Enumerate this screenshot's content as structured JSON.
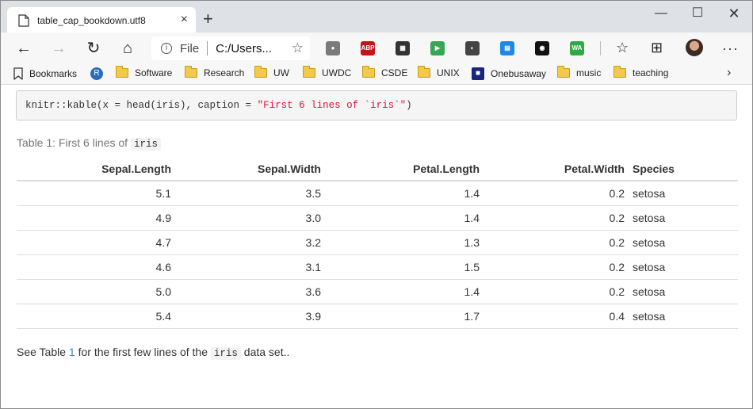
{
  "tab": {
    "title": "table_cap_bookdown.utf8",
    "close": "×",
    "new_tab": "+"
  },
  "window_controls": {
    "minimize": "—",
    "maximize": "☐",
    "close": "✕"
  },
  "address": {
    "scheme": "File",
    "url": "C:/Users..."
  },
  "extensions": [
    {
      "name": "ghostery",
      "color": "#7a7a7a",
      "glyph": "●"
    },
    {
      "name": "adblock-plus",
      "color": "#c7141a",
      "glyph": "ABP"
    },
    {
      "name": "qr-code",
      "color": "#333333",
      "glyph": "▦"
    },
    {
      "name": "play",
      "color": "#35a853",
      "glyph": "▶"
    },
    {
      "name": "incognito",
      "color": "#444444",
      "glyph": "◐"
    },
    {
      "name": "window-share",
      "color": "#1e88e5",
      "glyph": "▤"
    },
    {
      "name": "github",
      "color": "#111111",
      "glyph": "◉"
    },
    {
      "name": "whatsapp",
      "color": "#2fa944",
      "glyph": "WA"
    }
  ],
  "bookmarks": {
    "label": "Bookmarks",
    "items": [
      {
        "label": "Software",
        "type": "folder"
      },
      {
        "label": "Research",
        "type": "folder"
      },
      {
        "label": "UW",
        "type": "folder"
      },
      {
        "label": "UWDC",
        "type": "folder"
      },
      {
        "label": "CSDE",
        "type": "folder"
      },
      {
        "label": "UNIX",
        "type": "folder"
      },
      {
        "label": "Onebusaway",
        "type": "bus"
      },
      {
        "label": "music",
        "type": "folder"
      },
      {
        "label": "teaching",
        "type": "folder"
      }
    ],
    "more": "›"
  },
  "code": {
    "prefix": "knitr::kable(x = head(iris), caption = ",
    "string": "\"First 6 lines of `iris`\"",
    "suffix": ")"
  },
  "caption": {
    "prefix": "Table 1: First 6 lines of ",
    "code": "iris"
  },
  "table": {
    "headers": [
      "Sepal.Length",
      "Sepal.Width",
      "Petal.Length",
      "Petal.Width",
      "Species"
    ],
    "rows": [
      [
        "5.1",
        "3.5",
        "1.4",
        "0.2",
        "setosa"
      ],
      [
        "4.9",
        "3.0",
        "1.4",
        "0.2",
        "setosa"
      ],
      [
        "4.7",
        "3.2",
        "1.3",
        "0.2",
        "setosa"
      ],
      [
        "4.6",
        "3.1",
        "1.5",
        "0.2",
        "setosa"
      ],
      [
        "5.0",
        "3.6",
        "1.4",
        "0.2",
        "setosa"
      ],
      [
        "5.4",
        "3.9",
        "1.7",
        "0.4",
        "setosa"
      ]
    ]
  },
  "body": {
    "prefix": "See Table ",
    "ref": "1",
    "middle": " for the first few lines of the ",
    "code": "iris",
    "suffix": " data set.."
  }
}
